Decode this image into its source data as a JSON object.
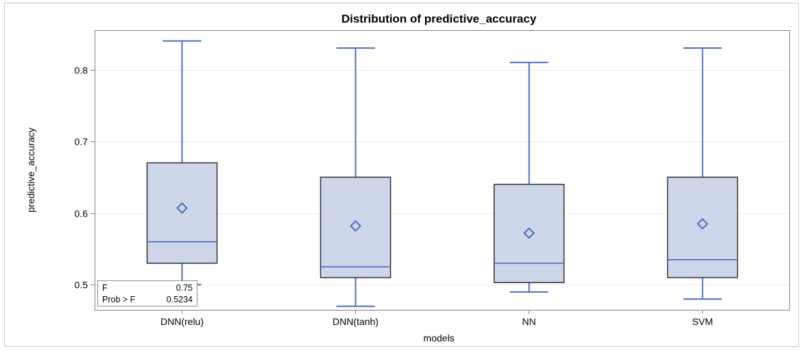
{
  "chart_data": {
    "type": "box",
    "title": "Distribution of predictive_accuracy",
    "xlabel": "models",
    "ylabel": "predictive_accuracy",
    "ylim": [
      0.465,
      0.855
    ],
    "yticks": [
      0.5,
      0.6,
      0.7,
      0.8
    ],
    "ytick_labels": [
      "0.5",
      "0.6",
      "0.7",
      "0.8"
    ],
    "grid": true,
    "categories": [
      "DNN(relu)",
      "DNN(tanh)",
      "NN",
      "SVM"
    ],
    "boxes": [
      {
        "category": "DNN(relu)",
        "min": 0.5,
        "q1": 0.53,
        "median": 0.56,
        "q3": 0.67,
        "max": 0.84,
        "mean": 0.607
      },
      {
        "category": "DNN(tanh)",
        "min": 0.47,
        "q1": 0.51,
        "median": 0.525,
        "q3": 0.65,
        "max": 0.83,
        "mean": 0.582
      },
      {
        "category": "NN",
        "min": 0.49,
        "q1": 0.503,
        "median": 0.53,
        "q3": 0.64,
        "max": 0.81,
        "mean": 0.572
      },
      {
        "category": "SVM",
        "min": 0.48,
        "q1": 0.51,
        "median": 0.535,
        "q3": 0.65,
        "max": 0.83,
        "mean": 0.585
      }
    ],
    "stats": [
      {
        "label": "F",
        "value": "0.75"
      },
      {
        "label": "Prob > F",
        "value": "0.5234"
      }
    ],
    "colors": {
      "box_fill": "#ced6ea",
      "box_edge": "#2f2f2f",
      "whisker": "#4a6fc2",
      "median": "#3f62b8",
      "mean_marker": "#3f62b8",
      "grid": "#ececec",
      "frame": "#808080"
    }
  }
}
